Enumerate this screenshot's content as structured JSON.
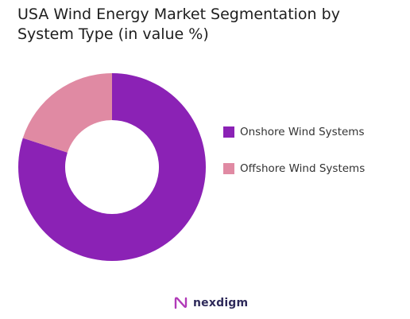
{
  "chart_data": {
    "type": "pie",
    "donut": true,
    "title": "USA Wind Energy Market Segmentation by System Type (in value %)",
    "categories": [
      "Onshore Wind Systems",
      "Offshore Wind Systems"
    ],
    "values": [
      80,
      20
    ],
    "colors": [
      "#8b22b5",
      "#e08aa3"
    ],
    "legend_position": "right"
  },
  "branding": {
    "logo_text": "nexdigm",
    "logo_icon": "nexdigm-logo-icon",
    "logo_color": "#2e2a5a",
    "logo_accent": "#b13bb8"
  }
}
